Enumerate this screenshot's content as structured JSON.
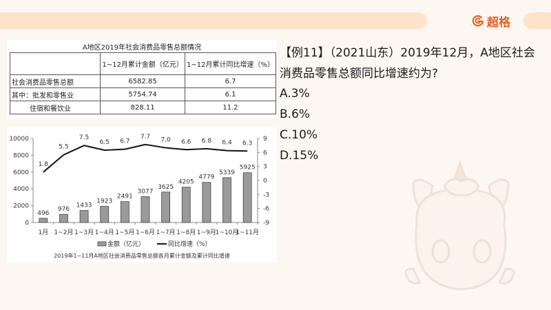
{
  "header": {
    "brand_name": "超格",
    "brand_color": "#e8602a",
    "band_color": "#fde3c8"
  },
  "table": {
    "title": "A地区2019年社会消费品零售总额情况",
    "columns": [
      "",
      "1~12月累计金额（亿元）",
      "1~12月累计同比增速（%）"
    ],
    "rows": [
      {
        "label": "社会消费品零售总额",
        "amount": "6582.85",
        "growth": "6.7"
      },
      {
        "label": "其中：批发和零售业",
        "amount": "5754.74",
        "growth": "6.1"
      },
      {
        "label": "住宿和餐饮业",
        "amount": "828.11",
        "growth": "11.2"
      }
    ]
  },
  "chart": {
    "caption": "2019年1~11月A地区社会消费品零售总额各月累计金额及累计同比增速",
    "legend_bar": "金额（亿元）",
    "legend_line": "同比增速（%）",
    "left_ticks": [
      "10000",
      "8000",
      "6000",
      "4000",
      "2000",
      "0"
    ],
    "right_ticks": [
      "9",
      "6",
      "3",
      "0",
      "-3",
      "-6",
      "-9"
    ]
  },
  "chart_data": {
    "type": "bar",
    "title": "2019年1~11月A地区社会消费品零售总额各月累计金额及累计同比增速",
    "categories": [
      "1月",
      "1~2月",
      "1~3月",
      "1~4月",
      "1~5月",
      "1~6月",
      "1~7月",
      "1~8月",
      "1~9月",
      "1~10月",
      "1~11月"
    ],
    "series": [
      {
        "name": "金额（亿元）",
        "type": "bar",
        "axis": "left",
        "values": [
          496,
          976,
          1433,
          1923,
          2491,
          3077,
          3625,
          4205,
          4779,
          5339,
          5925
        ]
      },
      {
        "name": "同比增速（%）",
        "type": "line",
        "axis": "right",
        "values": [
          1.8,
          5.5,
          7.5,
          6.5,
          6.7,
          7.7,
          7.0,
          6.6,
          6.8,
          6.4,
          6.3
        ]
      }
    ],
    "xlabel": "",
    "ylabel": "",
    "ylim": [
      0,
      10000
    ],
    "y2lim": [
      -9,
      9
    ],
    "legend_position": "bottom",
    "grid": false
  },
  "question": {
    "line1": "【例11】（2021山东）2019年12月，A地区社会",
    "line2": "消费品零售总额同比增速约为?",
    "options": [
      "A.3%",
      "B.6%",
      "C.10%",
      "D.15%"
    ]
  }
}
